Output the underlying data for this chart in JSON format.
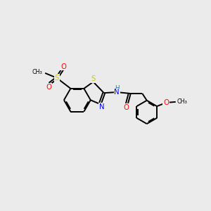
{
  "bg_color": "#ebebeb",
  "bond_color": "#000000",
  "bond_width": 1.4,
  "atom_colors": {
    "S": "#cccc00",
    "N": "#0000ff",
    "O": "#ff0000",
    "H": "#009090",
    "C": "#000000"
  },
  "figsize": [
    3.0,
    3.0
  ],
  "dpi": 100
}
